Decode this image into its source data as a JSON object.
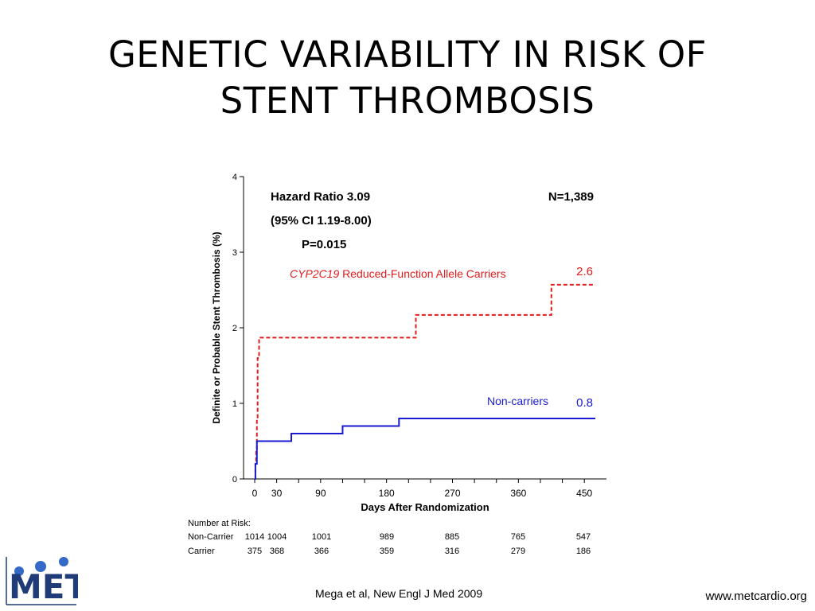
{
  "slide": {
    "title_line1": "GENETIC VARIABILITY IN RISK OF",
    "title_line2": "STENT THROMBOSIS",
    "caption": "Mega et al, New Engl J Med  2009",
    "website": "www.metcardio.org",
    "logo_text": "MET"
  },
  "colors": {
    "carrier": "#e31b1b",
    "noncarrier": "#1a1ad0",
    "axis": "#000000"
  },
  "chart_data": {
    "type": "line",
    "step": true,
    "title": "",
    "xlabel": "Days After Randomization",
    "ylabel": "Definite or Probable Stent Thrombosis (%)",
    "xlim": [
      0,
      465
    ],
    "ylim": [
      0,
      4
    ],
    "xticks": [
      0,
      30,
      90,
      180,
      270,
      360,
      450
    ],
    "yticks": [
      0,
      1,
      2,
      3,
      4
    ],
    "grid": false,
    "stats": {
      "hazard_ratio": "Hazard Ratio 3.09",
      "ci": "(95% CI 1.19-8.00)",
      "p": "P=0.015",
      "n": "N=1,389"
    },
    "series": [
      {
        "name_italic": "CYP2C19",
        "name_rest": " Reduced-Function Allele Carriers",
        "end_label": "2.6",
        "style": "dashed",
        "x": [
          0,
          1,
          2,
          3,
          4,
          6,
          220,
          405,
          465
        ],
        "y": [
          0,
          0.2,
          0.4,
          0.8,
          1.6,
          1.87,
          2.17,
          2.57,
          2.57
        ]
      },
      {
        "name": "Non-carriers",
        "end_label": "0.8",
        "style": "solid",
        "x": [
          0,
          1,
          3,
          50,
          120,
          197,
          465
        ],
        "y": [
          0,
          0.2,
          0.5,
          0.6,
          0.7,
          0.8,
          0.8
        ]
      }
    ],
    "risk_table": {
      "header": "Number at Risk:",
      "columns": [
        0,
        30,
        90,
        180,
        270,
        360,
        450
      ],
      "rows": [
        {
          "label": "Non-Carrier",
          "values": [
            "1014",
            "1004",
            "1001",
            "989",
            "885",
            "765",
            "547"
          ]
        },
        {
          "label": "Carrier",
          "values": [
            "375",
            "368",
            "366",
            "359",
            "316",
            "279",
            "186"
          ]
        }
      ]
    }
  }
}
